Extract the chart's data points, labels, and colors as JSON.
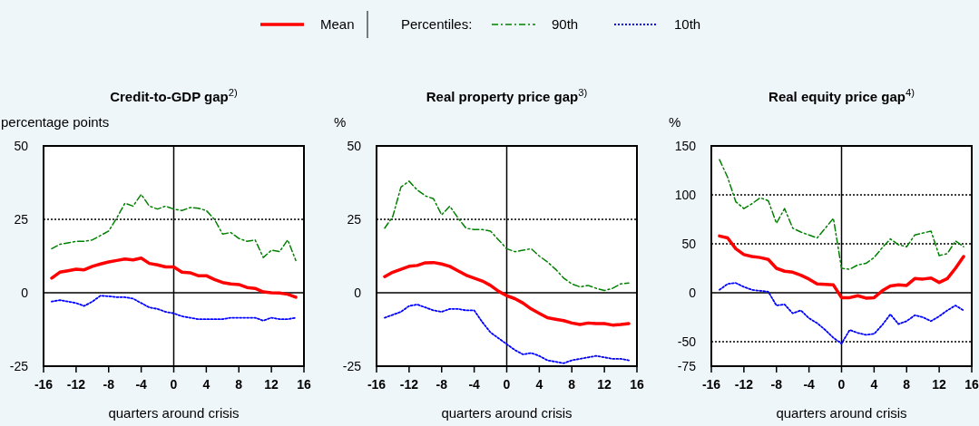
{
  "chart_data": [
    {
      "type": "line",
      "title": "Credit-to-GDP gap$^{2)}$",
      "ylabel": "percentage points",
      "xlabel": "quarters around crisis",
      "legend": "top",
      "legend_title": "Percentiles:",
      "x": [
        -15,
        -14,
        -13,
        -12,
        -11,
        -10,
        -9,
        -8,
        -7,
        -6,
        -5,
        -4,
        -3,
        -2,
        -1,
        0,
        1,
        2,
        3,
        4,
        5,
        6,
        7,
        8,
        9,
        10,
        11,
        12,
        13,
        14,
        15
      ],
      "xlim": [
        -16,
        16
      ],
      "xticks": [
        -16,
        -12,
        -8,
        -4,
        0,
        4,
        8,
        12,
        16
      ],
      "ylim": [
        -25,
        50
      ],
      "yticks": [
        -25,
        0,
        25,
        50
      ],
      "ref_lines": [
        {
          "axis": "x",
          "value": 0,
          "label": null,
          "color": "#000000",
          "line_style": "solid"
        },
        {
          "axis": "y",
          "value": 0,
          "label": null,
          "color": "#000000",
          "line_style": "solid"
        },
        {
          "axis": "y",
          "value": 25,
          "label": null,
          "color": "#000000",
          "line_style": "dotted"
        }
      ],
      "series": [
        {
          "name": "Mean",
          "color": "#ff0000",
          "line_style": "solid",
          "values": [
            5,
            7,
            7.5,
            8,
            7.8,
            9,
            9.8,
            10.5,
            11,
            11.5,
            11.2,
            11.8,
            10,
            9.5,
            8.8,
            8.8,
            7,
            6.8,
            5.8,
            5.8,
            4.5,
            3.5,
            3,
            2.8,
            1.8,
            1.5,
            0.3,
            0,
            -0.1,
            -0.5,
            -1.5
          ]
        },
        {
          "name": "90th",
          "color": "#008000",
          "line_style": "dashed",
          "values": [
            15,
            16.5,
            17,
            17.5,
            17.5,
            18,
            19.5,
            21,
            25.5,
            30.5,
            29.5,
            33.5,
            29.5,
            28.5,
            29.5,
            28.5,
            28,
            29,
            28.8,
            28,
            25,
            20,
            20.5,
            18.5,
            17.5,
            18,
            12,
            14.5,
            14,
            18,
            11
          ]
        },
        {
          "name": "10th",
          "color": "#0000ff",
          "line_style": "dotted",
          "values": [
            -3,
            -2.5,
            -3,
            -3.5,
            -4.5,
            -3,
            -1,
            -1.2,
            -1.5,
            -1.5,
            -2,
            -3.5,
            -5,
            -5.5,
            -6.5,
            -7,
            -8,
            -8.5,
            -9,
            -9,
            -9,
            -9,
            -8.5,
            -8.5,
            -8.5,
            -8.5,
            -9.5,
            -8.5,
            -9,
            -9,
            -8.5
          ]
        }
      ]
    },
    {
      "type": "line",
      "title": "Real property price gap$^{3)}$",
      "ylabel": "%",
      "xlabel": "quarters around crisis",
      "x": [
        -15,
        -14,
        -13,
        -12,
        -11,
        -10,
        -9,
        -8,
        -7,
        -6,
        -5,
        -4,
        -3,
        -2,
        -1,
        0,
        1,
        2,
        3,
        4,
        5,
        6,
        7,
        8,
        9,
        10,
        11,
        12,
        13,
        14,
        15
      ],
      "xlim": [
        -16,
        16
      ],
      "xticks": [
        -16,
        -12,
        -8,
        -4,
        0,
        4,
        8,
        12,
        16
      ],
      "ylim": [
        -25,
        50
      ],
      "yticks": [
        -25,
        0,
        25,
        50
      ],
      "ref_lines": [
        {
          "axis": "x",
          "value": 0,
          "label": null,
          "color": "#000000",
          "line_style": "solid"
        },
        {
          "axis": "y",
          "value": 0,
          "label": null,
          "color": "#000000",
          "line_style": "solid"
        },
        {
          "axis": "y",
          "value": 25,
          "label": null,
          "color": "#000000",
          "line_style": "dotted"
        }
      ],
      "series": [
        {
          "name": "Mean",
          "color": "#ff0000",
          "line_style": "solid",
          "values": [
            5.5,
            7,
            8,
            9,
            9.3,
            10.2,
            10.3,
            9.8,
            9,
            7.5,
            6,
            5,
            4,
            2.5,
            0.5,
            -1,
            -2,
            -3.5,
            -5.5,
            -7,
            -8.5,
            -9,
            -9.5,
            -10.3,
            -10.8,
            -10.3,
            -10.5,
            -10.5,
            -11,
            -10.8,
            -10.5
          ]
        },
        {
          "name": "90th",
          "color": "#008000",
          "line_style": "dashed",
          "values": [
            22,
            26,
            36,
            38,
            35,
            33,
            32,
            26.5,
            29.5,
            25.5,
            22,
            21.5,
            21.5,
            21,
            18,
            15,
            14,
            14.5,
            15,
            12.5,
            10.5,
            8,
            5,
            3,
            2,
            2.5,
            1.5,
            0.8,
            1.5,
            3,
            3.3
          ]
        },
        {
          "name": "10th",
          "color": "#0000ff",
          "line_style": "dotted",
          "values": [
            -8.5,
            -7.5,
            -6.5,
            -4.5,
            -4,
            -5,
            -6,
            -6.5,
            -5.5,
            -5.5,
            -6,
            -6,
            -10,
            -13.5,
            -15.5,
            -17.5,
            -19.5,
            -21,
            -20.5,
            -21.5,
            -23,
            -23.5,
            -24,
            -23,
            -22.5,
            -22,
            -21.5,
            -22,
            -22.5,
            -22.5,
            -23
          ]
        }
      ]
    },
    {
      "type": "line",
      "title": "Real equity price gap$^{4)}$",
      "ylabel": "%",
      "xlabel": "quarters around crisis",
      "x": [
        -15,
        -14,
        -13,
        -12,
        -11,
        -10,
        -9,
        -8,
        -7,
        -6,
        -5,
        -4,
        -3,
        -2,
        -1,
        0,
        1,
        2,
        3,
        4,
        5,
        6,
        7,
        8,
        9,
        10,
        11,
        12,
        13,
        14,
        15
      ],
      "xlim": [
        -16,
        16
      ],
      "xticks": [
        -16,
        -12,
        -8,
        -4,
        0,
        4,
        8,
        12,
        16
      ],
      "ylim": [
        -75,
        150
      ],
      "yticks": [
        -75,
        -50,
        0,
        50,
        100,
        150
      ],
      "ref_lines": [
        {
          "axis": "x",
          "value": 0,
          "label": null,
          "color": "#000000",
          "line_style": "solid"
        },
        {
          "axis": "y",
          "value": 0,
          "label": null,
          "color": "#000000",
          "line_style": "solid"
        },
        {
          "axis": "y",
          "value": 100,
          "label": null,
          "color": "#000000",
          "line_style": "dotted"
        },
        {
          "axis": "y",
          "value": 50,
          "label": null,
          "color": "#000000",
          "line_style": "dotted"
        },
        {
          "axis": "y",
          "value": -50,
          "label": null,
          "color": "#000000",
          "line_style": "dotted"
        }
      ],
      "series": [
        {
          "name": "Mean",
          "color": "#ff0000",
          "line_style": "solid",
          "values": [
            58,
            56,
            45,
            39,
            37,
            36,
            34,
            25,
            22,
            21,
            18,
            14,
            9,
            8.5,
            8,
            -5,
            -5,
            -3,
            -5.5,
            -5,
            2,
            7,
            8,
            7.5,
            14.5,
            14,
            15,
            10.5,
            14.5,
            25,
            37
          ]
        },
        {
          "name": "90th",
          "color": "#008000",
          "line_style": "dashed",
          "values": [
            136,
            118,
            93,
            86,
            91,
            97,
            94,
            71,
            86,
            66,
            62,
            59,
            56,
            66,
            76,
            25,
            24,
            28.5,
            30,
            36,
            46,
            55,
            49,
            47,
            59,
            61,
            63,
            38,
            40,
            53,
            47
          ]
        },
        {
          "name": "10th",
          "color": "#0000ff",
          "line_style": "dotted",
          "values": [
            3,
            9,
            10,
            6,
            3,
            2,
            1,
            -13,
            -12,
            -21,
            -18,
            -26,
            -31,
            -38,
            -46,
            -52,
            -38,
            -41,
            -43,
            -42,
            -33,
            -22,
            -32,
            -29,
            -23,
            -25,
            -29,
            -24,
            -18,
            -13,
            -18
          ]
        }
      ]
    }
  ]
}
